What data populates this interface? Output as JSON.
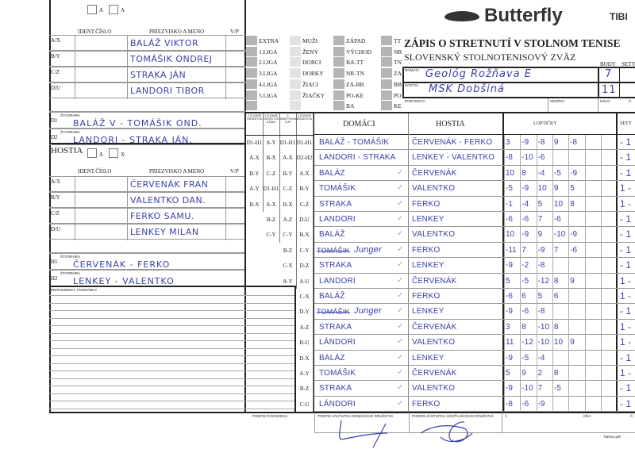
{
  "brand": {
    "logo": "Butterfly",
    "logo2": "TIBI"
  },
  "title": {
    "main": "ZÁPIS O STRETNUTÍ V STOLNOM TENISE",
    "sub": "SLOVENSKÝ STOLNOTENISOVÝ ZVÄZ"
  },
  "header": {
    "body_label": "BODY",
    "sety_label": "SETY",
    "domaci_label": "DOMÁCI",
    "hostia_label": "HOSTIA",
    "domaci_team": "Geológ Rožňava E",
    "hostia_team": "MŠK Dobšiná",
    "domaci_body": "7",
    "hostia_body": "11",
    "rozhodca_label": "ROZHODCA",
    "sezona_label": "SEZÓNA",
    "kolo_label": "KOLO",
    "cislo_label": "Č."
  },
  "leagues": {
    "col1": [
      "EXTRA",
      "1.LIGA",
      "2.LIGA",
      "3.LIGA",
      "4.LIGA",
      "5.LIGA"
    ],
    "col2": [
      "MUŽI",
      "ŽENY",
      "DORCI",
      "DORKY",
      "ŽIACI",
      "ŽIAČKY"
    ],
    "col3": [
      "ZÁPAD",
      "VÝCHOD",
      "BA-TT",
      "NR-TN",
      "ZA-BB",
      "PO-KE",
      "BA"
    ],
    "col4": [
      "TT",
      "NR",
      "TN",
      "ZA",
      "BB",
      "PO",
      "KE"
    ]
  },
  "home": {
    "box_a": "A",
    "box_x": "A",
    "ident_label": "IDENT.ČÍSLO",
    "name_label": "PRIEZVISKO A MENO",
    "vp_label": "V/P",
    "players": [
      {
        "pos": "A/X",
        "name": "BALÁŽ VIKTOR"
      },
      {
        "pos": "B/Y",
        "name": "TOMÁŠIK ONDREJ"
      },
      {
        "pos": "C/Z",
        "name": "STRAKA JÁN"
      },
      {
        "pos": "D/U",
        "name": "LANDORI TIBOR"
      }
    ],
    "doubles": [
      {
        "pos": "D1",
        "label": "ŠTVORHRA",
        "names": "BALÁŽ V - TOMÁŠIK OND."
      },
      {
        "pos": "D2",
        "label": "ŠTVORHRA",
        "names": "LANDORI - STRAKA JÁN."
      }
    ]
  },
  "guest": {
    "title": "HOSTIA",
    "box_a": "A",
    "box_x": "X",
    "ident_label": "IDENT.ČÍSLO",
    "name_label": "PRIEZVISKO A MENO",
    "vp_label": "V/P",
    "players": [
      {
        "pos": "A/X",
        "name": "ČERVENÁK FRAN"
      },
      {
        "pos": "B/Y",
        "name": "VALENTKO DAN."
      },
      {
        "pos": "C/Z",
        "name": "FERKO SAMU."
      },
      {
        "pos": "D/U",
        "name": "LENKEY MILAN"
      }
    ],
    "doubles": [
      {
        "pos": "H1",
        "label": "ŠTVORHRA",
        "names": "ČERVENÁK - FERKO"
      },
      {
        "pos": "H2",
        "label": "ŠTVORHRA",
        "names": "LENKEY - VALENTKO"
      }
    ]
  },
  "notes_label": "PRIPOMIENKY, POZNÁMKY",
  "order": {
    "headers": [
      "2 ČLENNÉ DRUŽSTVÁ",
      "3 ČLENNÉ DRUŽSTVÁ A ŽIACI",
      "3 SWAYTHLING CUP",
      "4 ČLENNÉ DRUŽSTVÁ"
    ],
    "cols": [
      [
        "D1-H1",
        "A-X",
        "B-Y",
        "A-Y",
        "B-X"
      ],
      [
        "A-Y",
        "B-X",
        "C-Z",
        "D1-H1",
        "A-X",
        "B-Z",
        "C-Y"
      ],
      [
        "D1-H1",
        "A-X",
        "B-Y",
        "C-Z",
        "B-X",
        "A-Z",
        "C-Y",
        "B-Z",
        "C-X",
        "A-Y"
      ],
      [
        "D1-H1",
        "D2-H2",
        "A-X",
        "B-Y",
        "C-Z",
        "D-U",
        "B-X",
        "C-Y",
        "D-Z",
        "A-U",
        "C-X",
        "D-Y",
        "A-Z",
        "B-U",
        "D-X",
        "A-Y",
        "B-Z",
        "C-U"
      ]
    ]
  },
  "matches_header": {
    "home": "DOMÁCI",
    "guest": "HOSTIA",
    "points": "LOPTIČKY",
    "sets": "SETY"
  },
  "matches": [
    {
      "home": "BALÁŽ - TOMÁŠIK",
      "guest": "ČERVENÁK - FERKO",
      "scores": [
        "3",
        "-9",
        "-8",
        "9",
        "-8"
      ],
      "sets": "- 1"
    },
    {
      "home": "LANDORI - STRAKA",
      "guest": "LENKEY - VALENTKO",
      "scores": [
        "-8",
        "-10",
        "-6"
      ],
      "sets": "- 1"
    },
    {
      "home": "BALÁZ",
      "guest": "ČERVENÁK",
      "scores": [
        "10",
        "8",
        "-4",
        "-5",
        "-9"
      ],
      "sets": "- 1"
    },
    {
      "home": "TOMÁŠIK",
      "guest": "VALENTKO",
      "scores": [
        "-5",
        "-9",
        "10",
        "9",
        "5"
      ],
      "sets": "1 -"
    },
    {
      "home": "STRAKA",
      "guest": "FERKO",
      "scores": [
        "-1",
        "-4",
        "5",
        "10",
        "8"
      ],
      "sets": "1 -"
    },
    {
      "home": "LANDORI",
      "guest": "LENKEY",
      "scores": [
        "-6",
        "-6",
        "7",
        "-6"
      ],
      "sets": "- 1"
    },
    {
      "home": "BALÁŽ",
      "guest": "VALENTKO",
      "scores": [
        "10",
        "-9",
        "9",
        "-10",
        "-9"
      ],
      "sets": "- 1"
    },
    {
      "home": "Junger",
      "struck": "TOMÁŠIK",
      "guest": "FERKO",
      "scores": [
        "-11",
        "7",
        "-9",
        "7",
        "-6"
      ],
      "sets": "- 1"
    },
    {
      "home": "STRAKA",
      "guest": "LENKEY",
      "scores": [
        "-9",
        "-2",
        "-8"
      ],
      "sets": "- 1"
    },
    {
      "home": "LANDORI",
      "guest": "ČERVENÁK",
      "scores": [
        "5",
        "-5",
        "-12",
        "8",
        "9"
      ],
      "sets": "1 -"
    },
    {
      "home": "BALÁŽ",
      "guest": "FERKO",
      "scores": [
        "-6",
        "6",
        "5",
        "6"
      ],
      "sets": "1 -"
    },
    {
      "home": "Junger",
      "struck": "TOMÁŠIK",
      "guest": "LENKEY",
      "scores": [
        "-9",
        "-6",
        "-8"
      ],
      "sets": "- 1"
    },
    {
      "home": "STRAKA",
      "guest": "ČERVENÁK",
      "scores": [
        "3",
        "8",
        "-10",
        "8"
      ],
      "sets": "1 -"
    },
    {
      "home": "LÁNDORI",
      "guest": "VALENTKO",
      "scores": [
        "11",
        "-12",
        "-10",
        "10",
        "9"
      ],
      "sets": "1 -"
    },
    {
      "home": "BALÁZ",
      "guest": "LENKEY",
      "scores": [
        "-9",
        "-5",
        "-4"
      ],
      "sets": "- 1"
    },
    {
      "home": "TOMÁŠIK",
      "guest": "ČERVENÁK",
      "scores": [
        "5",
        "9",
        "2",
        "8"
      ],
      "sets": "1 -"
    },
    {
      "home": "STRAKA",
      "guest": "VALENTKO",
      "scores": [
        "-9",
        "-10",
        "7",
        "-5"
      ],
      "sets": "- 1"
    },
    {
      "home": "LÁNDORI",
      "guest": "FERKO",
      "scores": [
        "-8",
        "-6",
        "-9"
      ],
      "sets": "- 1"
    }
  ],
  "signatures": {
    "referee": "PODPIS ROZHODCU",
    "home_rep": "PODPIS ZÁSTUPCU DOMÁCEHO DRUŽSTVA",
    "guest_rep": "PODPIS ZÁSTUPCU HOSŤUJÚCEHO DRUŽSTVA",
    "place": "V",
    "day": "DŇA",
    "cislo": "Č."
  },
  "footer": "Tlačivo.pdf"
}
